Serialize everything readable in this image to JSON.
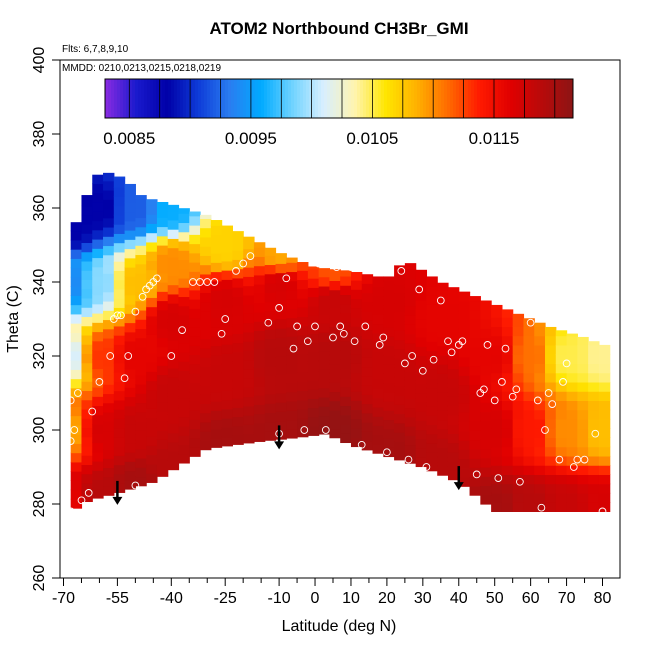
{
  "chart_data": {
    "type": "heatmap",
    "title": "ATOM2 Northbound CH3Br_GMI",
    "flights_label": "Flts: 6,7,8,9,10",
    "dates_label": "MMDD: 0210,0213,0215,0218,0219",
    "xlabel": "Latitude (deg N)",
    "ylabel": "Theta (C)",
    "xlim": [
      -70,
      82
    ],
    "ylim": [
      260,
      400
    ],
    "x_ticks": [
      -70,
      -55,
      -40,
      -25,
      -10,
      0,
      10,
      20,
      30,
      40,
      50,
      60,
      70,
      80
    ],
    "x_tick_labels": [
      "-70",
      "-55",
      "-40",
      "-25",
      "-10",
      "0",
      "10",
      "20",
      "30",
      "40",
      "50",
      "60",
      "70",
      "80"
    ],
    "x_minor_ticks": [
      -65,
      -60,
      -50,
      -45,
      -35,
      -30,
      -20,
      -15,
      -5,
      5,
      15,
      25,
      35,
      45,
      55,
      65,
      75
    ],
    "y_ticks": [
      260,
      280,
      300,
      320,
      340,
      360,
      380,
      400
    ],
    "y_tick_labels": [
      "260",
      "280",
      "300",
      "320",
      "340",
      "360",
      "380",
      "400"
    ],
    "colorbar": {
      "min": 0.0083,
      "max": 0.01215,
      "ticks": [
        0.0085,
        0.0095,
        0.0105,
        0.0115
      ],
      "tick_labels": [
        "0.0085",
        "0.0095",
        "0.0105",
        "0.0115"
      ],
      "colors": [
        "#8a2be2",
        "#1a1acd",
        "#0000a8",
        "#0e3cd8",
        "#2a7df0",
        "#00aaff",
        "#6fd3ff",
        "#d8efff",
        "#fff4b0",
        "#ffe600",
        "#ffb000",
        "#ff6a00",
        "#ff1a00",
        "#e00000",
        "#b80a0a",
        "#8c1515"
      ]
    },
    "top_boundary": [
      [
        -68,
        338
      ],
      [
        -67,
        355
      ],
      [
        -64,
        362
      ],
      [
        -62,
        368
      ],
      [
        -59,
        370
      ],
      [
        -53,
        368
      ],
      [
        -48,
        363
      ],
      [
        -40,
        361
      ],
      [
        -30,
        358
      ],
      [
        -20,
        353
      ],
      [
        -10,
        348
      ],
      [
        0,
        344
      ],
      [
        10,
        343
      ],
      [
        20,
        341
      ],
      [
        25,
        346
      ],
      [
        35,
        340
      ],
      [
        45,
        336
      ],
      [
        55,
        332
      ],
      [
        65,
        328
      ],
      [
        75,
        325
      ],
      [
        80,
        323
      ]
    ],
    "bottom_boundary": [
      [
        80,
        278
      ],
      [
        50,
        278
      ],
      [
        40,
        286
      ],
      [
        30,
        290
      ],
      [
        20,
        293
      ],
      [
        10,
        296
      ],
      [
        3,
        299
      ],
      [
        -5,
        298
      ],
      [
        -15,
        297
      ],
      [
        -30,
        295
      ],
      [
        -45,
        286
      ],
      [
        -55,
        283
      ],
      [
        -63,
        281
      ],
      [
        -68,
        278
      ]
    ],
    "field_anchors": [
      [
        -68,
        280,
        0.0116
      ],
      [
        -68,
        300,
        0.0109
      ],
      [
        -68,
        320,
        0.0101
      ],
      [
        -68,
        340,
        0.0094
      ],
      [
        -68,
        355,
        0.0088
      ],
      [
        -60,
        282,
        0.0119
      ],
      [
        -60,
        300,
        0.0117
      ],
      [
        -60,
        320,
        0.0113
      ],
      [
        -60,
        340,
        0.0099
      ],
      [
        -60,
        360,
        0.0088
      ],
      [
        -50,
        285,
        0.012
      ],
      [
        -50,
        300,
        0.0118
      ],
      [
        -50,
        320,
        0.0116
      ],
      [
        -50,
        340,
        0.0108
      ],
      [
        -50,
        360,
        0.0092
      ],
      [
        -40,
        290,
        0.0119
      ],
      [
        -40,
        310,
        0.0118
      ],
      [
        -40,
        330,
        0.0117
      ],
      [
        -40,
        345,
        0.011
      ],
      [
        -40,
        360,
        0.0096
      ],
      [
        -25,
        296,
        0.012
      ],
      [
        -25,
        315,
        0.0118
      ],
      [
        -25,
        335,
        0.0117
      ],
      [
        -25,
        350,
        0.0107
      ],
      [
        -10,
        298,
        0.012
      ],
      [
        -10,
        320,
        0.0119
      ],
      [
        -10,
        340,
        0.0117
      ],
      [
        -10,
        347,
        0.0109
      ],
      [
        5,
        299,
        0.0121
      ],
      [
        5,
        320,
        0.0119
      ],
      [
        5,
        335,
        0.0118
      ],
      [
        5,
        343,
        0.0112
      ],
      [
        20,
        293,
        0.012
      ],
      [
        20,
        315,
        0.0118
      ],
      [
        20,
        335,
        0.0117
      ],
      [
        35,
        290,
        0.0119
      ],
      [
        35,
        310,
        0.0118
      ],
      [
        35,
        330,
        0.0116
      ],
      [
        50,
        279,
        0.012
      ],
      [
        50,
        300,
        0.0117
      ],
      [
        50,
        320,
        0.0116
      ],
      [
        60,
        279,
        0.0119
      ],
      [
        60,
        300,
        0.0114
      ],
      [
        60,
        320,
        0.0111
      ],
      [
        70,
        279,
        0.0118
      ],
      [
        70,
        300,
        0.011
      ],
      [
        70,
        320,
        0.0105
      ],
      [
        80,
        279,
        0.0117
      ],
      [
        80,
        300,
        0.0108
      ],
      [
        80,
        320,
        0.0104
      ]
    ],
    "samples": [
      [
        -68,
        278
      ],
      [
        -68,
        297
      ],
      [
        -68,
        308
      ],
      [
        -67,
        300
      ],
      [
        -66,
        310
      ],
      [
        -65,
        281
      ],
      [
        -63,
        283
      ],
      [
        -62,
        305
      ],
      [
        -60,
        313
      ],
      [
        -57,
        320
      ],
      [
        -56,
        330
      ],
      [
        -55,
        331
      ],
      [
        -54,
        331
      ],
      [
        -53,
        314
      ],
      [
        -52,
        320
      ],
      [
        -50,
        332
      ],
      [
        -50,
        285
      ],
      [
        -48,
        336
      ],
      [
        -47,
        338
      ],
      [
        -46,
        339
      ],
      [
        -45,
        340
      ],
      [
        -44,
        341
      ],
      [
        -40,
        320
      ],
      [
        -37,
        327
      ],
      [
        -34,
        340
      ],
      [
        -32,
        340
      ],
      [
        -30,
        340
      ],
      [
        -28,
        340
      ],
      [
        -26,
        326
      ],
      [
        -25,
        330
      ],
      [
        -22,
        343
      ],
      [
        -20,
        345
      ],
      [
        -18,
        347
      ],
      [
        -13,
        329
      ],
      [
        -10,
        333
      ],
      [
        -10,
        299
      ],
      [
        -8,
        341
      ],
      [
        -6,
        322
      ],
      [
        -5,
        328
      ],
      [
        -3,
        300
      ],
      [
        -2,
        324
      ],
      [
        0,
        328
      ],
      [
        1,
        345
      ],
      [
        3,
        300
      ],
      [
        5,
        325
      ],
      [
        6,
        344
      ],
      [
        7,
        328
      ],
      [
        8,
        326
      ],
      [
        10,
        344
      ],
      [
        11,
        324
      ],
      [
        13,
        296
      ],
      [
        14,
        328
      ],
      [
        15,
        344
      ],
      [
        16,
        344
      ],
      [
        18,
        323
      ],
      [
        19,
        325
      ],
      [
        20,
        294
      ],
      [
        24,
        343
      ],
      [
        25,
        318
      ],
      [
        26,
        292
      ],
      [
        27,
        320
      ],
      [
        29,
        338
      ],
      [
        30,
        316
      ],
      [
        31,
        290
      ],
      [
        33,
        319
      ],
      [
        35,
        335
      ],
      [
        37,
        324
      ],
      [
        38,
        321
      ],
      [
        40,
        323
      ],
      [
        41,
        324
      ],
      [
        45,
        288
      ],
      [
        46,
        310
      ],
      [
        47,
        311
      ],
      [
        48,
        323
      ],
      [
        50,
        308
      ],
      [
        51,
        287
      ],
      [
        52,
        313
      ],
      [
        53,
        322
      ],
      [
        55,
        309
      ],
      [
        56,
        311
      ],
      [
        57,
        286
      ],
      [
        60,
        329
      ],
      [
        62,
        308
      ],
      [
        63,
        279
      ],
      [
        64,
        300
      ],
      [
        65,
        310
      ],
      [
        66,
        307
      ],
      [
        68,
        292
      ],
      [
        69,
        313
      ],
      [
        70,
        318
      ],
      [
        72,
        290
      ],
      [
        73,
        292
      ],
      [
        75,
        292
      ],
      [
        78,
        299
      ],
      [
        80,
        278
      ]
    ],
    "arrows": [
      [
        -55,
        283
      ],
      [
        -10,
        298
      ],
      [
        40,
        287
      ]
    ]
  }
}
